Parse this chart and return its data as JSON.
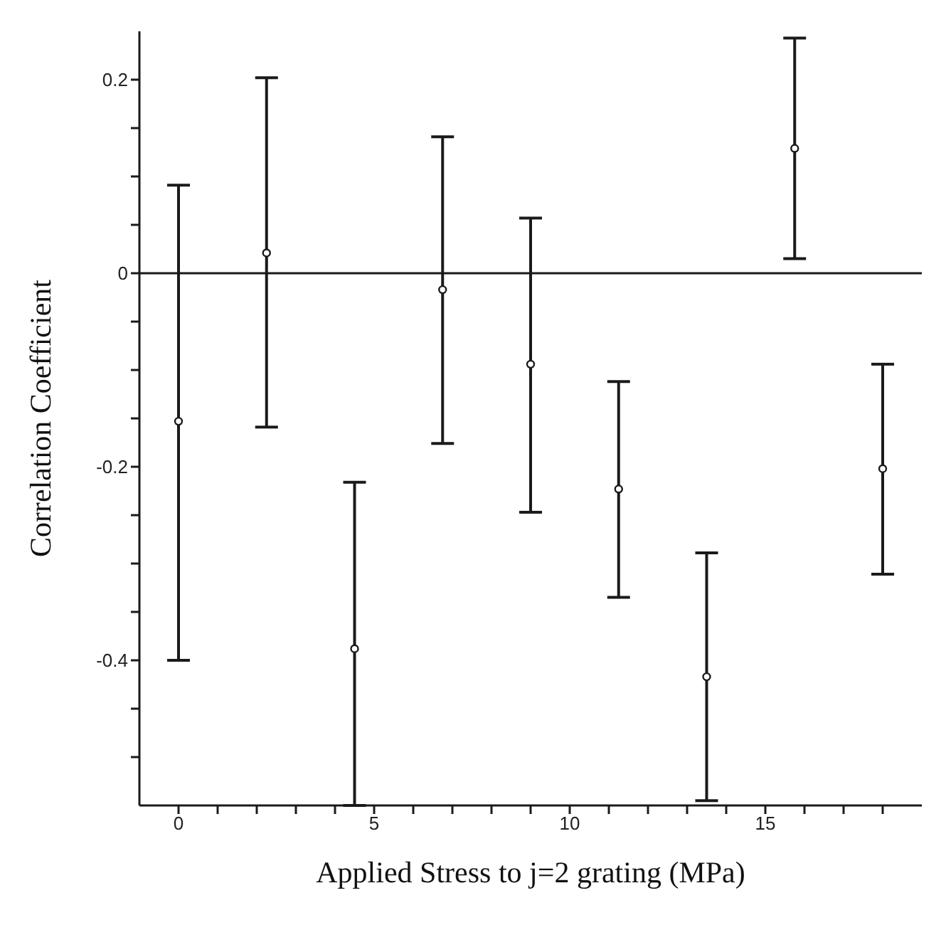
{
  "chart_data": {
    "type": "scatter",
    "xlabel": "Applied Stress to j=2 grating (MPa)",
    "ylabel": "Correlation Coefficient",
    "x": [
      0,
      2.25,
      4.5,
      6.75,
      9,
      11.25,
      13.5,
      15.75,
      18
    ],
    "values": [
      -0.153,
      0.021,
      -0.388,
      -0.017,
      -0.094,
      -0.223,
      -0.417,
      0.129,
      -0.202
    ],
    "errors": [
      [
        -0.4,
        0.091
      ],
      [
        -0.159,
        0.202
      ],
      [
        -0.55,
        -0.216
      ],
      [
        -0.176,
        0.141
      ],
      [
        -0.247,
        0.057
      ],
      [
        -0.335,
        -0.112
      ],
      [
        -0.545,
        -0.289
      ],
      [
        0.015,
        0.243
      ],
      [
        -0.311,
        -0.094
      ]
    ],
    "color": "#1a1a1a",
    "marker": "circle",
    "xlim": [
      -1,
      19
    ],
    "xticks": [
      0,
      {
        "value": 1,
        "label": null
      },
      {
        "value": 2,
        "label": null
      },
      {
        "value": 3,
        "label": null
      },
      {
        "value": 4,
        "label": null
      },
      5,
      {
        "value": 6,
        "label": null
      },
      {
        "value": 7,
        "label": null
      },
      {
        "value": 8,
        "label": null
      },
      {
        "value": 9,
        "label": null
      },
      10,
      {
        "value": 11,
        "label": null
      },
      {
        "value": 12,
        "label": null
      },
      {
        "value": 13,
        "label": null
      },
      {
        "value": 14,
        "label": null
      },
      15,
      {
        "value": 16,
        "label": null
      },
      {
        "value": 17,
        "label": null
      },
      {
        "value": 18,
        "label": null
      }
    ],
    "ylim": [
      -0.55,
      0.25
    ],
    "yticks": [
      {
        "value": -0.5,
        "label": null
      },
      {
        "value": -0.45,
        "label": null
      },
      -0.4,
      {
        "value": -0.35,
        "label": null
      },
      {
        "value": -0.3,
        "label": null
      },
      {
        "value": -0.25,
        "label": null
      },
      -0.2,
      {
        "value": -0.15,
        "label": null
      },
      {
        "value": -0.1,
        "label": null
      },
      {
        "value": -0.05,
        "label": null
      },
      0,
      {
        "value": 0.05,
        "label": null
      },
      {
        "value": 0.1,
        "label": null
      },
      {
        "value": 0.15,
        "label": null
      },
      0.2
    ],
    "ref_lines": [
      {
        "axis": "y",
        "value": 0,
        "color": "#1a1a1a",
        "line_style": "solid"
      }
    ],
    "grid": false,
    "legend": false
  }
}
